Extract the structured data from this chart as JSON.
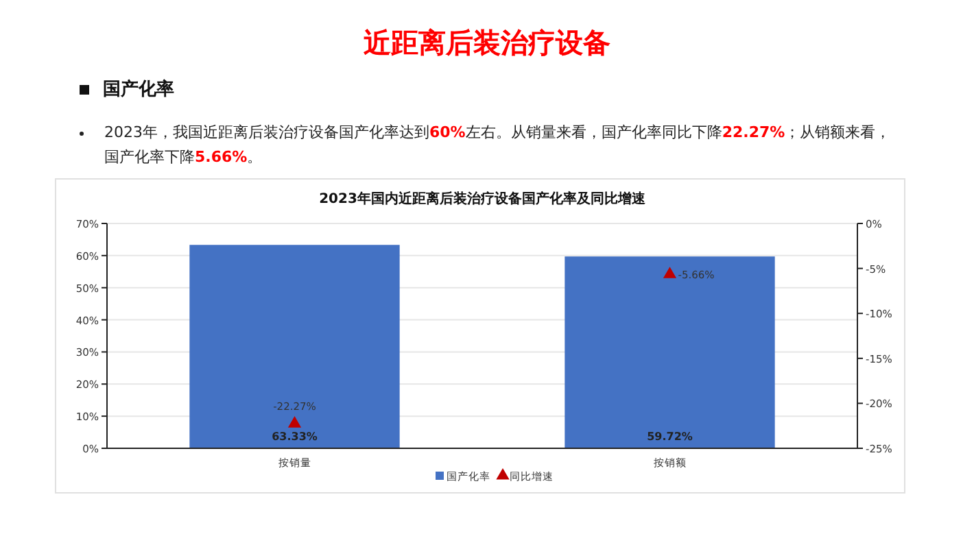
{
  "chart_data": {
    "type": "bar",
    "title": "2023年国内近距离后装治疗设备国产化率及同比增速",
    "annotations": [
      "近距离后装治疗设备",
      "国产化率",
      "2023年，我国近距离后装治疗设备国产化率达到60%左右。从销量来看，国产化率同比下降22.27%；从销额来看，国产化率下降5.66%。"
    ],
    "categories": [
      "按销量",
      "按销额"
    ],
    "series": [
      {
        "name": "国产化率",
        "color": "#4472c4",
        "values": [
          63.33,
          59.72
        ],
        "value_labels": [
          "63.33%",
          "59.72%"
        ]
      },
      {
        "name": "同比增速",
        "type": "scatter",
        "axis": "y2",
        "marker": "triangle",
        "color": "#c00000",
        "values": [
          -22.27,
          -5.66
        ],
        "value_labels": [
          "-22.27%",
          "-5.66%"
        ]
      }
    ],
    "ylim": [
      0,
      70
    ],
    "yticks": [
      {
        "value": 0,
        "label": "0%"
      },
      {
        "value": 10,
        "label": "10%"
      },
      {
        "value": 20,
        "label": "20%"
      },
      {
        "value": 30,
        "label": "30%"
      },
      {
        "value": 40,
        "label": "40%"
      },
      {
        "value": 50,
        "label": "50%"
      },
      {
        "value": 60,
        "label": "60%"
      },
      {
        "value": 70,
        "label": "70%"
      }
    ],
    "y2lim": [
      -25,
      0
    ],
    "y2ticks": [
      {
        "value": -25,
        "label": "-25%"
      },
      {
        "value": -20,
        "label": "-20%"
      },
      {
        "value": -15,
        "label": "-15%"
      },
      {
        "value": -10,
        "label": "-10%"
      },
      {
        "value": -5,
        "label": "-5%"
      },
      {
        "value": 0,
        "label": "0%"
      }
    ],
    "grid": "y",
    "legend": "bottom"
  }
}
